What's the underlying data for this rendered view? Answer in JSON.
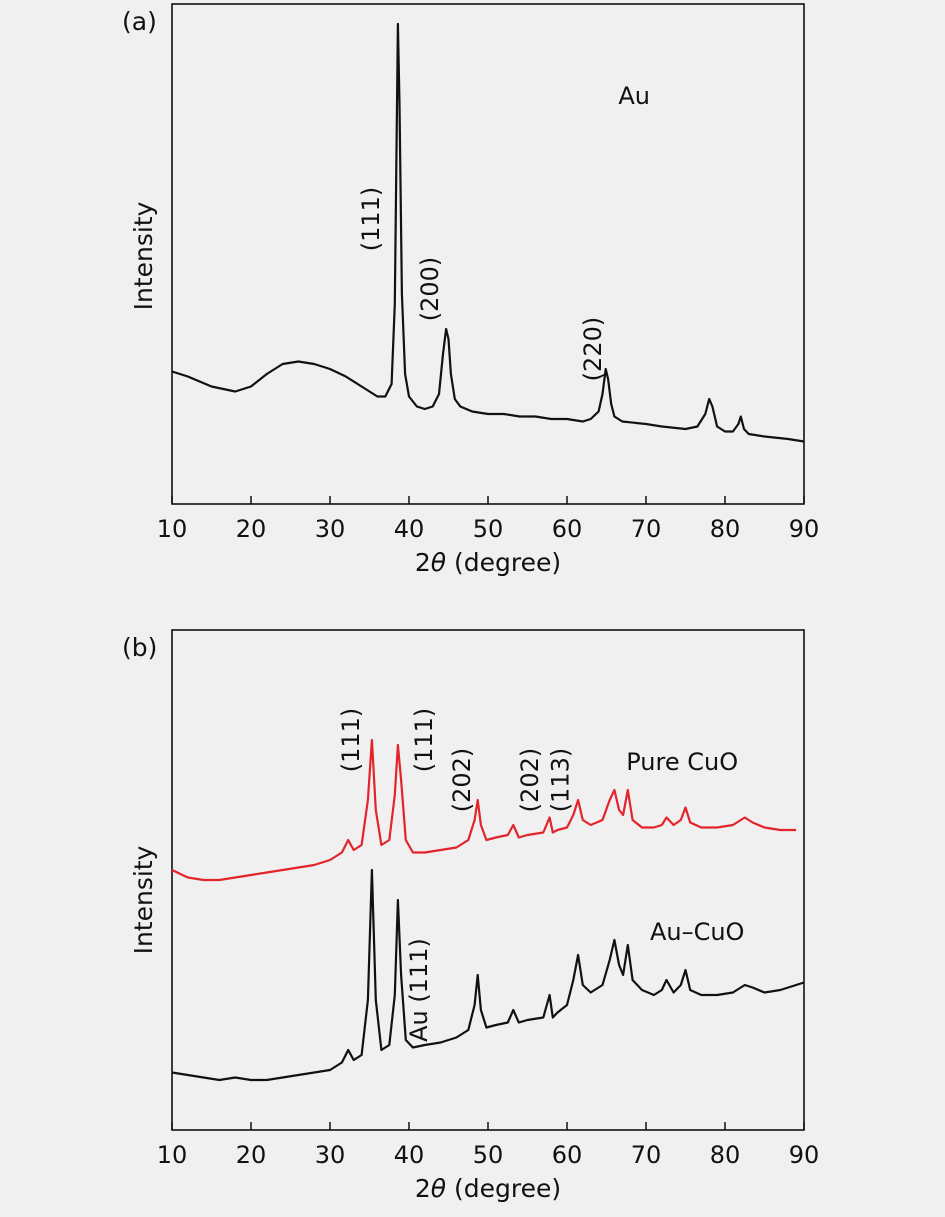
{
  "chart_data": [
    {
      "type": "line",
      "panel_label": "(a)",
      "xlabel_prefix": "2",
      "xlabel_symbol": "θ",
      "xlabel_suffix": " (degree)",
      "ylabel": "Intensity",
      "xlim": [
        10,
        90
      ],
      "ylim": [
        0,
        100
      ],
      "xticks": [
        10,
        20,
        30,
        40,
        50,
        60,
        70,
        80,
        90
      ],
      "grid": false,
      "series": [
        {
          "name": "Au",
          "color": "#111111",
          "x": [
            10,
            12,
            15,
            18,
            20,
            22,
            24,
            26,
            28,
            30,
            32,
            34,
            35,
            36,
            37,
            37.8,
            38.2,
            38.6,
            38.8,
            39.1,
            39.5,
            40,
            41,
            42,
            43,
            43.8,
            44.3,
            44.7,
            45,
            45.3,
            45.8,
            46.5,
            48,
            50,
            52,
            54,
            56,
            58,
            60,
            62,
            63,
            64,
            64.5,
            64.9,
            65.2,
            65.6,
            66,
            67,
            70,
            72,
            75,
            76.5,
            77.5,
            78,
            78.4,
            79,
            80,
            81,
            81.7,
            82,
            82.4,
            83,
            85,
            88,
            90
          ],
          "y": [
            26.5,
            25.5,
            23.5,
            22.5,
            23.5,
            26,
            28,
            28.5,
            28,
            27,
            25.5,
            23.5,
            22.5,
            21.5,
            21.5,
            24,
            40,
            96,
            80,
            42,
            26,
            21.5,
            19.5,
            19,
            19.5,
            22,
            30,
            35,
            33,
            26,
            21,
            19.5,
            18.5,
            18,
            18,
            17.5,
            17.5,
            17,
            17,
            16.5,
            17,
            18.5,
            22,
            27,
            25,
            20,
            17.5,
            16.5,
            16,
            15.5,
            15,
            15.5,
            18,
            21,
            19.5,
            15.5,
            14.5,
            14.5,
            16,
            17.5,
            15,
            14,
            13.5,
            13,
            12.5
          ]
        }
      ],
      "annotations": [
        {
          "text": "Au",
          "x": 66.5,
          "y": 80,
          "rotate": false
        },
        {
          "text": "(111)",
          "x": 36.2,
          "y": 57,
          "rotate": true
        },
        {
          "text": "(200)",
          "x": 43.7,
          "y": 43,
          "rotate": true
        },
        {
          "text": "(220)",
          "x": 64.3,
          "y": 31,
          "rotate": true
        }
      ]
    },
    {
      "type": "line",
      "panel_label": "(b)",
      "xlabel_prefix": "2",
      "xlabel_symbol": "θ",
      "xlabel_suffix": " (degree)",
      "ylabel": "Intensity",
      "xlim": [
        10,
        90
      ],
      "ylim": [
        0,
        100
      ],
      "xticks": [
        10,
        20,
        30,
        40,
        50,
        60,
        70,
        80,
        90
      ],
      "grid": false,
      "series": [
        {
          "name": "Pure CuO",
          "color": "#e3242b",
          "x": [
            10,
            12,
            14,
            16,
            18,
            20,
            22,
            24,
            26,
            28,
            30,
            31.5,
            32.3,
            33,
            34,
            34.8,
            35.3,
            35.8,
            36.5,
            37.5,
            38.2,
            38.6,
            39,
            39.6,
            40.5,
            42,
            44,
            46,
            47.5,
            48.3,
            48.7,
            49.1,
            49.8,
            51,
            52.5,
            53.2,
            53.9,
            55,
            57,
            57.8,
            58.2,
            58.8,
            60,
            60.8,
            61.4,
            62,
            63,
            64.5,
            65.4,
            66,
            66.6,
            67.1,
            67.7,
            68.3,
            69.5,
            71,
            72,
            72.6,
            73.5,
            74.4,
            75,
            75.6,
            77,
            79,
            81,
            82.5,
            83.5,
            85,
            87,
            89
          ],
          "y": [
            52,
            50.5,
            50,
            50,
            50.5,
            51,
            51.5,
            52,
            52.5,
            53,
            54,
            55.5,
            58,
            56,
            57,
            66,
            78,
            64,
            57,
            58,
            67,
            77,
            70,
            58,
            55.5,
            55.5,
            56,
            56.5,
            58,
            62,
            66,
            61,
            58,
            58.5,
            59,
            61,
            58.5,
            59,
            59.5,
            62.5,
            59.5,
            60,
            60.5,
            63,
            66,
            62,
            61,
            62,
            66,
            68,
            64,
            63,
            68,
            62,
            60.5,
            60.5,
            61,
            62.5,
            61,
            62,
            64.5,
            61.5,
            60.5,
            60.5,
            61,
            62.5,
            61.5,
            60.5,
            60,
            60
          ]
        },
        {
          "name": "Au–CuO",
          "color": "#111111",
          "x": [
            10,
            12,
            14,
            16,
            18,
            20,
            22,
            24,
            26,
            28,
            30,
            31.5,
            32.3,
            33,
            34,
            34.8,
            35.3,
            35.8,
            36.5,
            37.5,
            38.2,
            38.6,
            39,
            39.6,
            40.5,
            42,
            44,
            46,
            47.5,
            48.3,
            48.7,
            49.1,
            49.8,
            51,
            52.5,
            53.2,
            53.9,
            55,
            57,
            57.8,
            58.2,
            58.8,
            60,
            60.8,
            61.4,
            62,
            63,
            64.5,
            65.4,
            66,
            66.6,
            67.1,
            67.7,
            68.3,
            69.5,
            71,
            72,
            72.6,
            73.5,
            74.4,
            75,
            75.6,
            77,
            79,
            81,
            82.5,
            83.5,
            85,
            87,
            89,
            90
          ],
          "y": [
            11.5,
            11,
            10.5,
            10,
            10.5,
            10,
            10,
            10.5,
            11,
            11.5,
            12,
            13.5,
            16,
            14,
            15,
            26,
            52,
            26,
            16,
            17,
            27,
            46,
            31,
            18,
            16.5,
            17,
            17.5,
            18.5,
            20,
            25,
            31,
            24,
            20.5,
            21,
            21.5,
            24,
            21.5,
            22,
            22.5,
            27,
            22.5,
            23.5,
            25,
            30,
            35,
            29,
            27.5,
            29,
            34,
            38,
            33,
            31,
            37,
            30,
            28,
            27,
            28,
            30,
            27.5,
            29,
            32,
            28,
            27,
            27,
            27.5,
            29,
            28.5,
            27.5,
            28,
            29,
            29.5
          ]
        }
      ],
      "annotations": [
        {
          "text": "Pure CuO",
          "x": 67.5,
          "y": 72,
          "rotate": false
        },
        {
          "text": "Au–CuO",
          "x": 70.5,
          "y": 38,
          "rotate": false
        },
        {
          "text": "(111)",
          "x": 33.7,
          "y": 78,
          "rotate": true
        },
        {
          "text": "(111)",
          "x": 42.9,
          "y": 78,
          "rotate": true
        },
        {
          "text": "(202)",
          "x": 47.7,
          "y": 70,
          "rotate": true
        },
        {
          "text": "(202)",
          "x": 56.3,
          "y": 70,
          "rotate": true
        },
        {
          "text": "(113)",
          "x": 60.2,
          "y": 70,
          "rotate": true
        },
        {
          "text": "Au (111)",
          "x": 42.3,
          "y": 28,
          "rotate": true
        }
      ]
    }
  ]
}
